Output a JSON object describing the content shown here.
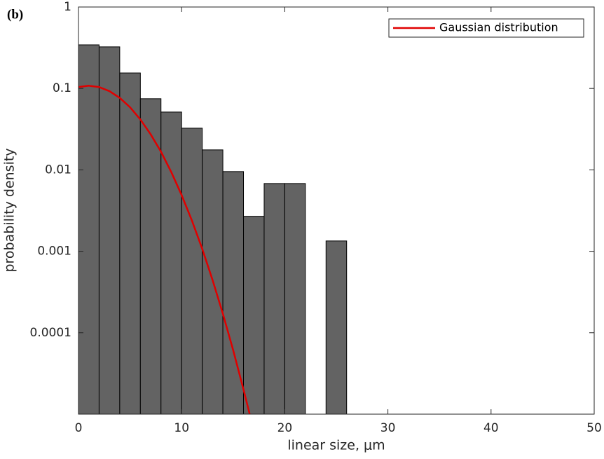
{
  "chart_data": {
    "type": "histogram",
    "panel_label": "(b)",
    "xlabel": "linear size, μm",
    "ylabel": "probability density",
    "bins": [
      0,
      2,
      4,
      6,
      8,
      10,
      12,
      14,
      16,
      18,
      20,
      22,
      24,
      26
    ],
    "values": [
      0.343,
      0.324,
      0.155,
      0.0748,
      0.0513,
      0.0325,
      0.0176,
      0.00953,
      0.00269,
      0.0068,
      0.0068,
      0,
      0.00134
    ],
    "color": "#636363",
    "series": [
      {
        "name": "Gaussian distribution",
        "type": "line",
        "color": "#e00000",
        "x": [
          0,
          1,
          2,
          3,
          4,
          5,
          6,
          7,
          8,
          9,
          10,
          11,
          12,
          13,
          14,
          15,
          16,
          16.6
        ],
        "values": [
          0.104,
          0.108,
          0.104,
          0.0927,
          0.0766,
          0.0587,
          0.0416,
          0.0273,
          0.0167,
          0.00938,
          0.0049,
          0.00238,
          0.00107,
          0.000444,
          0.000171,
          6.09e-05,
          2.01e-05,
          1e-05
        ]
      }
    ],
    "xlim": [
      0,
      50
    ],
    "xticks": [
      0,
      10,
      20,
      30,
      40,
      50
    ],
    "ylim": [
      1e-05,
      1
    ],
    "yticks": [
      0.0001,
      0.001,
      0.01,
      0.1,
      1
    ],
    "ylog": true,
    "legend": "upper right"
  }
}
